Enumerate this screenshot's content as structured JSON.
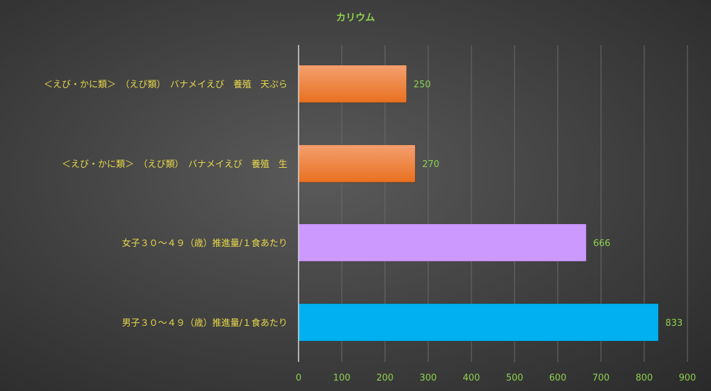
{
  "chart_data": {
    "type": "bar",
    "orientation": "horizontal",
    "title": "カリウム",
    "categories": [
      "＜えび・かに類＞　（えび類）　バナメイえび　養殖　天ぷら",
      "＜えび・かに類＞　（えび類）　バナメイえび　養殖　生",
      "女子３０～４９（歳）推進量/１食あたり",
      "男子３０～４９（歳）推進量/１食あたり"
    ],
    "values": [
      250,
      270,
      666,
      833
    ],
    "data_labels": [
      "250",
      "270",
      "666",
      "833"
    ],
    "bar_colors": [
      "#ed7d31",
      "#ed7d31",
      "#cc99ff",
      "#00b0f0"
    ],
    "xlim": [
      0,
      900
    ],
    "xticks": [
      "0",
      "100",
      "200",
      "300",
      "400",
      "500",
      "600",
      "700",
      "800",
      "900"
    ],
    "grid": true,
    "legend": false
  }
}
